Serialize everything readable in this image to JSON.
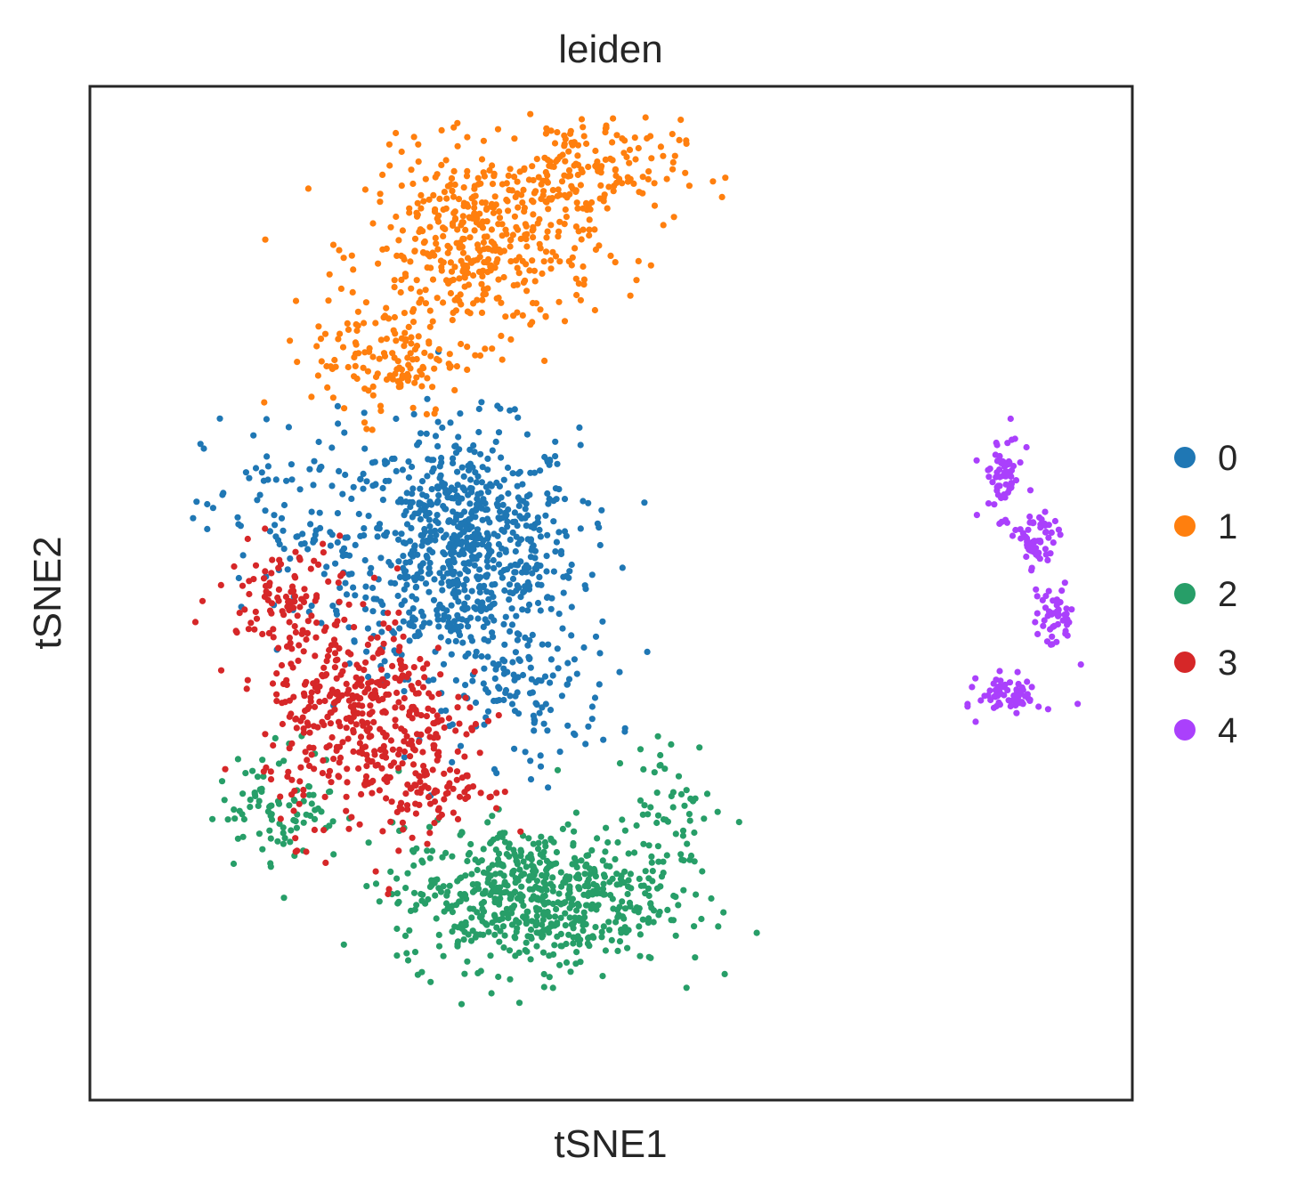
{
  "chart_data": {
    "type": "scatter",
    "title": "leiden",
    "xlabel": "tSNE1",
    "ylabel": "tSNE2",
    "xticks": [],
    "yticks": [],
    "grid": false,
    "legend_position": "right",
    "xlim": [
      -60,
      60
    ],
    "ylim": [
      -60,
      60
    ],
    "series": [
      {
        "name": "0",
        "color": "#1f77b4",
        "blobs": [
          [
            -17,
            5,
            11,
            12,
            780
          ],
          [
            -36,
            8,
            9,
            11,
            110
          ],
          [
            -10,
            -12,
            9,
            7,
            110
          ]
        ]
      },
      {
        "name": "1",
        "color": "#ff7f0e",
        "blobs": [
          [
            -15,
            41,
            11,
            9,
            430
          ],
          [
            -4,
            50,
            10,
            5,
            170
          ],
          [
            -26,
            28,
            7,
            6,
            130
          ]
        ]
      },
      {
        "name": "2",
        "color": "#279e68",
        "blobs": [
          [
            -9,
            -36,
            13,
            7,
            640
          ],
          [
            -38,
            -25,
            6,
            6,
            90
          ],
          [
            7,
            -26,
            5,
            7,
            60
          ]
        ]
      },
      {
        "name": "3",
        "color": "#d62728",
        "blobs": [
          [
            -29,
            -15,
            9,
            11,
            420
          ],
          [
            -38,
            0,
            6,
            5,
            90
          ],
          [
            -20,
            -22,
            5,
            6,
            90
          ]
        ]
      },
      {
        "name": "4",
        "color": "#aa40fc",
        "blobs": [
          [
            45,
            14,
            2,
            4,
            60
          ],
          [
            49,
            6,
            2,
            3,
            60
          ],
          [
            51,
            -3,
            2,
            3,
            50
          ],
          [
            46,
            -12,
            3,
            2,
            70
          ]
        ]
      }
    ]
  },
  "legend": {
    "items": [
      {
        "label": "0",
        "color": "#1f77b4"
      },
      {
        "label": "1",
        "color": "#ff7f0e"
      },
      {
        "label": "2",
        "color": "#279e68"
      },
      {
        "label": "3",
        "color": "#d62728"
      },
      {
        "label": "4",
        "color": "#aa40fc"
      }
    ]
  }
}
